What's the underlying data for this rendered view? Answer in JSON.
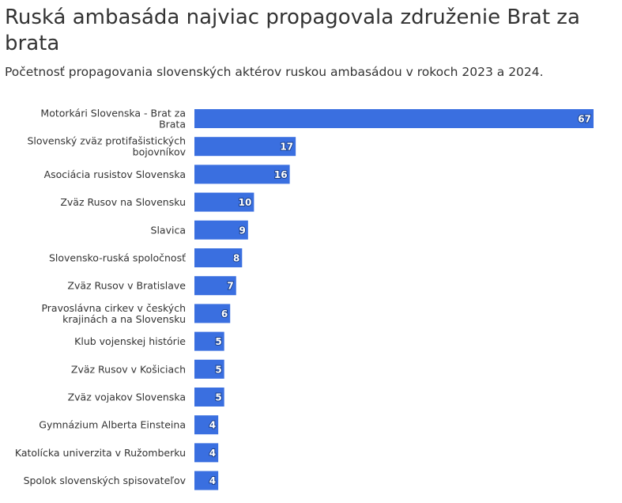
{
  "header": {
    "title": "Ruská ambasáda najviac propagovala združenie Brat za brata",
    "subtitle": "Početnosť propagovania slovenských aktérov ruskou ambasádou v rokoch 2023 a 2024."
  },
  "colors": {
    "bar": "#3a6fe0",
    "text": "#333333"
  },
  "chart_data": {
    "type": "bar",
    "orientation": "horizontal",
    "title": "Ruská ambasáda najviac propagovala združenie Brat za brata",
    "subtitle": "Početnosť propagovania slovenských aktérov ruskou ambasádou v rokoch 2023 a 2024.",
    "xlabel": "",
    "ylabel": "",
    "xlim": [
      0,
      67
    ],
    "grid": false,
    "legend": "none",
    "categories": [
      [
        "Motorkári Slovenska - Brat za",
        "Brata"
      ],
      [
        "Slovenský zväz protifašistických",
        "bojovníkov"
      ],
      [
        "Asociácia rusistov Slovenska"
      ],
      [
        "Zväz Rusov na Slovensku"
      ],
      [
        "Slavica"
      ],
      [
        "Slovensko-ruská spoločnosť"
      ],
      [
        "Zväz Rusov v Bratislave"
      ],
      [
        "Pravoslávna cirkev v českých",
        "krajinách a na Slovensku"
      ],
      [
        "Klub vojenskej histórie"
      ],
      [
        "Zväz Rusov v Košiciach"
      ],
      [
        "Zväz vojakov Slovenska"
      ],
      [
        "Gymnázium Alberta Einsteina"
      ],
      [
        "Katolícka univerzita v Ružomberku"
      ],
      [
        "Spolok slovenských spisovateľov"
      ]
    ],
    "values": [
      67,
      17,
      16,
      10,
      9,
      8,
      7,
      6,
      5,
      5,
      5,
      4,
      4,
      4
    ]
  }
}
